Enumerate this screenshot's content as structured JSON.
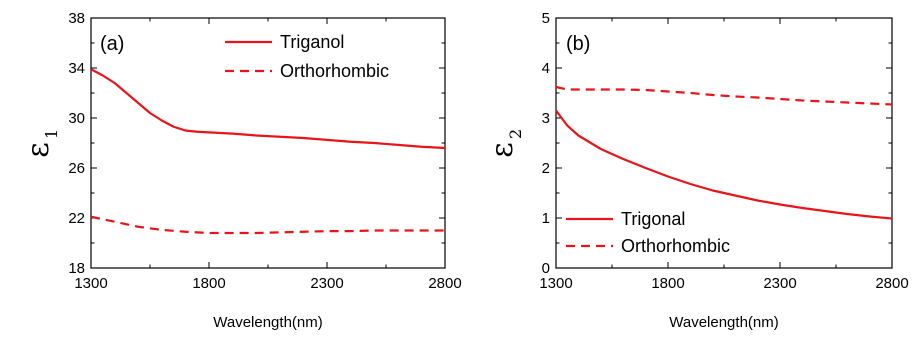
{
  "chart_data": [
    {
      "type": "line",
      "panel_label": "(a)",
      "xlabel": "Wavelength(nm)",
      "ylabel": "ε",
      "ylabel_sub": "1",
      "xlim": [
        1300,
        2800
      ],
      "ylim": [
        18,
        38
      ],
      "xticks": [
        1300,
        1800,
        2300,
        2800
      ],
      "yticks": [
        18,
        22,
        26,
        30,
        34,
        38
      ],
      "legend_position": "top-right",
      "series": [
        {
          "name": "Triganol",
          "style": "solid",
          "color": "#e8141a",
          "x": [
            1300,
            1350,
            1400,
            1450,
            1500,
            1550,
            1600,
            1650,
            1700,
            1750,
            1800,
            1900,
            2000,
            2100,
            2200,
            2300,
            2400,
            2500,
            2600,
            2700,
            2800
          ],
          "y": [
            33.9,
            33.4,
            32.8,
            32.0,
            31.2,
            30.4,
            29.8,
            29.3,
            29.0,
            28.9,
            28.85,
            28.75,
            28.6,
            28.5,
            28.4,
            28.25,
            28.1,
            28.0,
            27.85,
            27.7,
            27.6
          ]
        },
        {
          "name": "Orthorhombic",
          "style": "dashed",
          "color": "#e8141a",
          "x": [
            1300,
            1400,
            1500,
            1600,
            1700,
            1800,
            1900,
            2000,
            2100,
            2200,
            2300,
            2400,
            2500,
            2600,
            2700,
            2800
          ],
          "y": [
            22.1,
            21.7,
            21.3,
            21.05,
            20.9,
            20.8,
            20.8,
            20.8,
            20.85,
            20.9,
            20.95,
            20.95,
            21.0,
            21.0,
            21.0,
            21.0
          ]
        }
      ]
    },
    {
      "type": "line",
      "panel_label": "(b)",
      "xlabel": "Wavelength(nm)",
      "ylabel": "ε",
      "ylabel_sub": "2",
      "xlim": [
        1300,
        2800
      ],
      "ylim": [
        0,
        5
      ],
      "xticks": [
        1300,
        1800,
        2300,
        2800
      ],
      "yticks": [
        0,
        1,
        2,
        3,
        4,
        5
      ],
      "legend_position": "bottom-left",
      "series": [
        {
          "name": "Trigonal",
          "style": "solid",
          "color": "#e8141a",
          "x": [
            1300,
            1350,
            1400,
            1500,
            1600,
            1700,
            1800,
            1900,
            2000,
            2100,
            2200,
            2300,
            2400,
            2500,
            2600,
            2700,
            2800
          ],
          "y": [
            3.15,
            2.85,
            2.65,
            2.38,
            2.18,
            2.0,
            1.83,
            1.68,
            1.55,
            1.45,
            1.35,
            1.27,
            1.2,
            1.14,
            1.08,
            1.03,
            0.99
          ]
        },
        {
          "name": "Orthorhombic",
          "style": "dashed",
          "color": "#e8141a",
          "x": [
            1300,
            1350,
            1400,
            1500,
            1600,
            1700,
            1800,
            1900,
            2000,
            2100,
            2200,
            2300,
            2400,
            2500,
            2600,
            2700,
            2800
          ],
          "y": [
            3.62,
            3.57,
            3.57,
            3.57,
            3.57,
            3.56,
            3.53,
            3.5,
            3.46,
            3.43,
            3.41,
            3.38,
            3.35,
            3.33,
            3.31,
            3.29,
            3.27
          ]
        }
      ]
    }
  ]
}
